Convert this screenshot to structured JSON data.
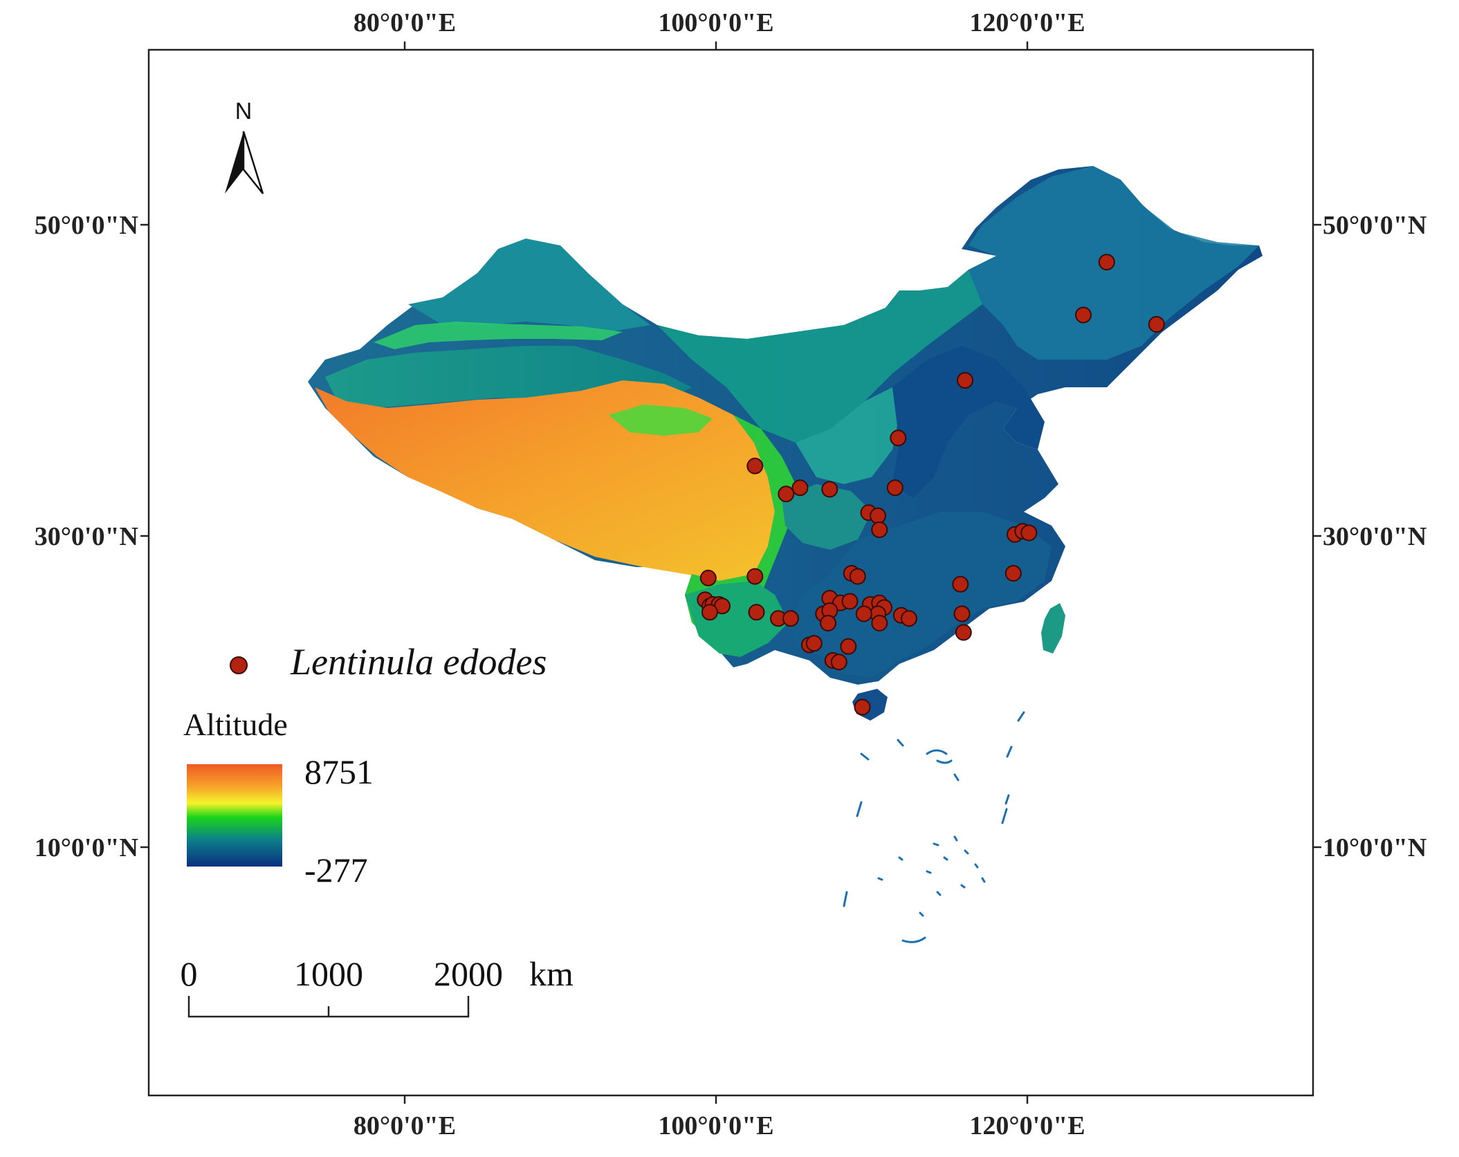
{
  "map": {
    "lon_ticks": [
      "80°0'0\"E",
      "100°0'0\"E",
      "120°0'0\"E"
    ],
    "lat_ticks": [
      "50°0'0\"N",
      "30°0'0\"N",
      "10°0'0\"N"
    ],
    "north_arrow_label": "N",
    "colors": {
      "high": "#ef5a24",
      "mid_yellow": "#f6f32a",
      "mid_green": "#19d41a",
      "low_teal": "#0c7f8a",
      "lowest": "#0a2f7e",
      "point": "#b3230f"
    },
    "occurrence_points_lonlat": [
      [
        125.1,
        47.6
      ],
      [
        123.6,
        44.2
      ],
      [
        128.3,
        43.6
      ],
      [
        116.0,
        40.0
      ],
      [
        111.7,
        36.3
      ],
      [
        102.5,
        34.5
      ],
      [
        104.5,
        32.7
      ],
      [
        105.4,
        33.1
      ],
      [
        107.3,
        33.0
      ],
      [
        111.5,
        33.1
      ],
      [
        109.8,
        31.5
      ],
      [
        110.4,
        31.3
      ],
      [
        110.5,
        30.4
      ],
      [
        119.2,
        30.1
      ],
      [
        119.7,
        30.3
      ],
      [
        120.1,
        30.2
      ],
      [
        99.5,
        27.3
      ],
      [
        102.5,
        27.4
      ],
      [
        108.7,
        27.6
      ],
      [
        109.1,
        27.4
      ],
      [
        119.1,
        27.6
      ],
      [
        115.7,
        26.9
      ],
      [
        99.3,
        25.9
      ],
      [
        99.6,
        25.5
      ],
      [
        99.8,
        25.6
      ],
      [
        100.2,
        25.6
      ],
      [
        100.4,
        25.5
      ],
      [
        99.6,
        25.1
      ],
      [
        102.6,
        25.1
      ],
      [
        107.3,
        26.0
      ],
      [
        108.0,
        25.7
      ],
      [
        108.6,
        25.8
      ],
      [
        109.9,
        25.6
      ],
      [
        110.5,
        25.7
      ],
      [
        110.8,
        25.4
      ],
      [
        110.4,
        25.0
      ],
      [
        109.5,
        25.0
      ],
      [
        106.9,
        25.0
      ],
      [
        107.3,
        25.2
      ],
      [
        111.9,
        24.9
      ],
      [
        112.4,
        24.7
      ],
      [
        115.8,
        25.0
      ],
      [
        104.0,
        24.7
      ],
      [
        104.8,
        24.7
      ],
      [
        107.2,
        24.4
      ],
      [
        110.5,
        24.4
      ],
      [
        115.9,
        23.8
      ],
      [
        106.0,
        23.0
      ],
      [
        106.3,
        23.1
      ],
      [
        108.5,
        22.9
      ],
      [
        107.5,
        22.0
      ],
      [
        107.9,
        21.9
      ],
      [
        109.4,
        19.0
      ]
    ]
  },
  "legend": {
    "species": "Lentinula edodes",
    "altitude_title": "Altitude",
    "altitude_max": "8751",
    "altitude_min": "-277"
  },
  "scale_bar": {
    "labels": [
      "0",
      "1000",
      "2000"
    ],
    "unit": "km"
  }
}
